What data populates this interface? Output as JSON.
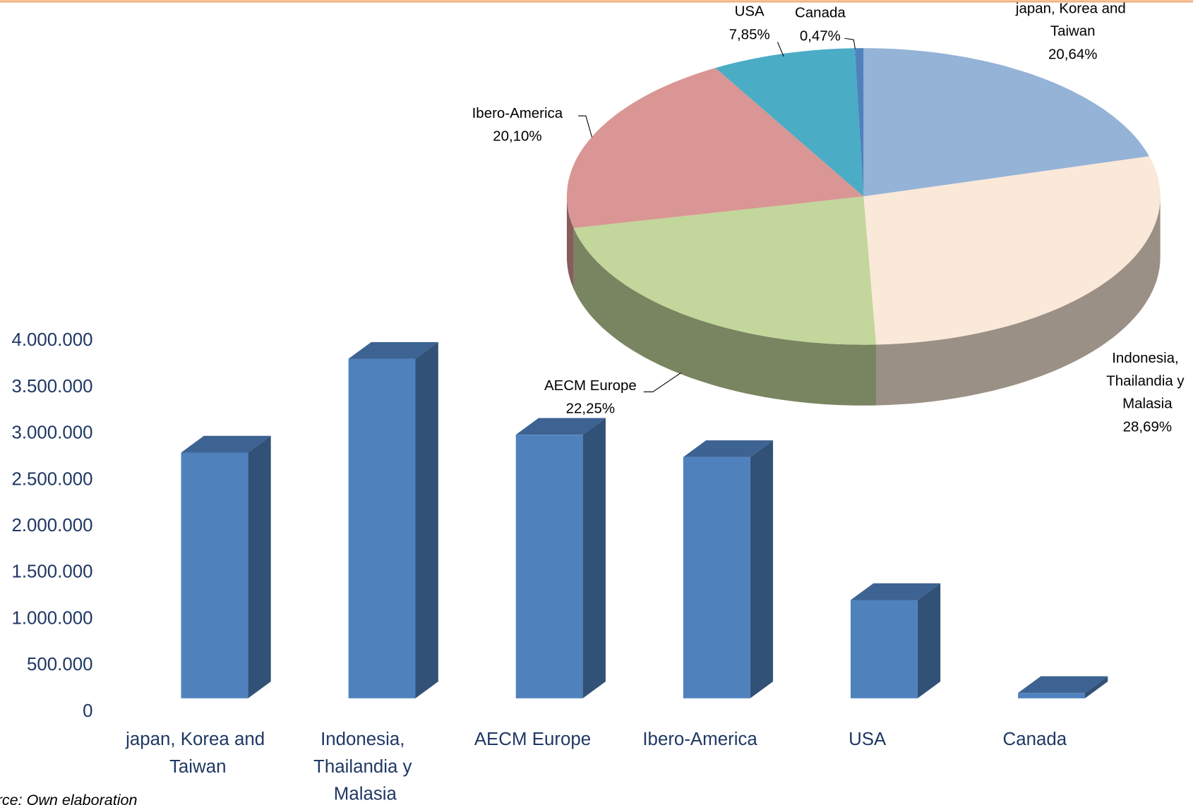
{
  "chart_data": [
    {
      "type": "bar3d",
      "categories": [
        "japan, Korea and Taiwan",
        "Indonesia, Thailandia y Malasia",
        "AECM Europe",
        "Ibero-America",
        "USA",
        "Canada"
      ],
      "values": [
        2750000,
        3800000,
        2950000,
        2700000,
        1100000,
        60000
      ],
      "color": "#4f81bd",
      "ylim": [
        0,
        4000000
      ],
      "yticks": [
        {
          "value": 0,
          "label": "0"
        },
        {
          "value": 500000,
          "label": "500.000"
        },
        {
          "value": 1000000,
          "label": "1.000.000"
        },
        {
          "value": 1500000,
          "label": "1.500.000"
        },
        {
          "value": 2000000,
          "label": "2.000.000"
        },
        {
          "value": 2500000,
          "label": "2.500.000"
        },
        {
          "value": 3000000,
          "label": "3.000.000"
        },
        {
          "value": 3500000,
          "label": "3.500.000"
        },
        {
          "value": 4000000,
          "label": "4.000.000"
        }
      ],
      "grid": false,
      "note": "rce: Own elaboration"
    },
    {
      "type": "pie3d",
      "categories": [
        "japan, Korea and Taiwan",
        "Indonesia, Thailandia y Malasia",
        "AECM Europe",
        "Ibero-America",
        "USA",
        "Canada"
      ],
      "values": [
        20.64,
        28.69,
        22.25,
        20.1,
        7.85,
        0.47
      ],
      "value_labels": [
        "20,64%",
        "28,69%",
        "22,25%",
        "20,10%",
        "7,85%",
        "0,47%"
      ],
      "colors": [
        "#95b3d7",
        "#fae8d8",
        "#c3d69b",
        "#d99694",
        "#4bacc6",
        "#4f81bd"
      ]
    }
  ]
}
